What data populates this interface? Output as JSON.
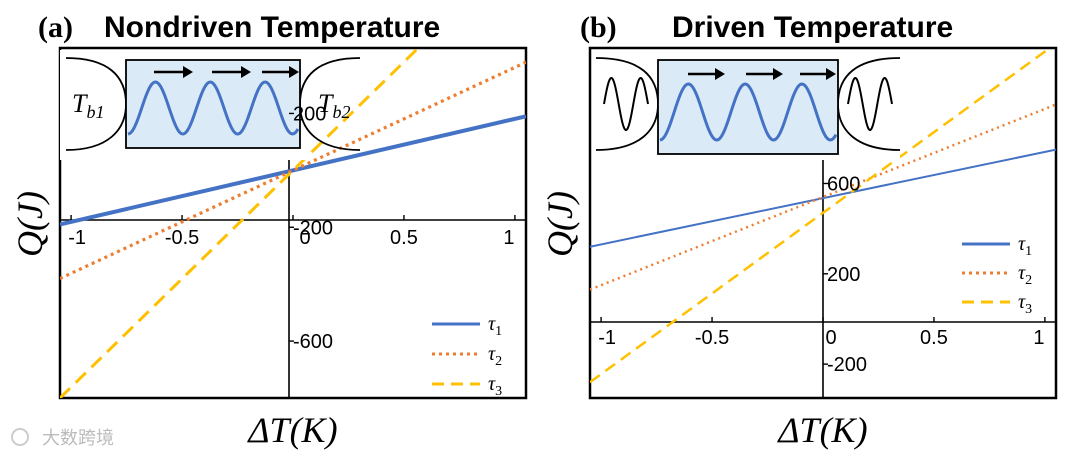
{
  "figure": {
    "watermark": "大数跨境"
  },
  "colors": {
    "tau1": "#4472c4",
    "tau2": "#ed7d31",
    "tau3": "#ffc000",
    "inset_fill": "#dbeaf7"
  },
  "chart_data": [
    {
      "type": "line",
      "panel_label": "(a)",
      "title": "Nondriven Temperature",
      "xlabel": "ΔT(K)",
      "ylabel": "Q(J)",
      "xlim": [
        -1.05,
        1.05
      ],
      "ylim": [
        -800,
        430
      ],
      "x_ticks": [
        -1,
        -0.5,
        0,
        0.5,
        1
      ],
      "x_tick_labels": [
        "-1",
        "-0.5",
        "0",
        "0.5",
        "1"
      ],
      "y_ticks": [
        200,
        -200,
        -600
      ],
      "y_tick_labels": [
        "200",
        "-200",
        "-600"
      ],
      "inset_labels": {
        "left": "T_b1",
        "right": "T_b2"
      },
      "series": [
        {
          "name": "τ1",
          "style": "solid",
          "x": [
            -1.05,
            1.05
          ],
          "values": [
            -190,
            190
          ]
        },
        {
          "name": "τ2",
          "style": "dotted",
          "x": [
            -1.05,
            1.05
          ],
          "values": [
            -380,
            380
          ]
        },
        {
          "name": "τ3",
          "style": "dashed",
          "x": [
            -1.05,
            1.05
          ],
          "values": [
            -800,
            800
          ]
        }
      ],
      "legend": [
        "τ1",
        "τ2",
        "τ3"
      ],
      "legend_position": "bottom-right"
    },
    {
      "type": "line",
      "panel_label": "(b)",
      "title": "Driven Temperature",
      "xlabel": "ΔT(K)",
      "ylabel": "Q(J)",
      "xlim": [
        -1.05,
        1.05
      ],
      "ylim": [
        -350,
        1200
      ],
      "x_ticks": [
        -1,
        -0.5,
        0,
        0.5,
        1
      ],
      "x_tick_labels": [
        "-1",
        "-0.5",
        "0",
        "0.5",
        "1"
      ],
      "y_ticks": [
        600,
        200,
        -200
      ],
      "y_tick_labels": [
        "600",
        "200",
        "-200"
      ],
      "series": [
        {
          "name": "τ1",
          "style": "solid",
          "x": [
            -1.05,
            1.05
          ],
          "values": [
            320,
            750
          ]
        },
        {
          "name": "τ2",
          "style": "dotted",
          "x": [
            -1.05,
            1.05
          ],
          "values": [
            130,
            950
          ]
        },
        {
          "name": "τ3",
          "style": "dashed",
          "x": [
            -1.05,
            1.05
          ],
          "values": [
            -280,
            1220
          ]
        }
      ],
      "legend": [
        "τ1",
        "τ2",
        "τ3"
      ],
      "legend_position": "right"
    }
  ]
}
